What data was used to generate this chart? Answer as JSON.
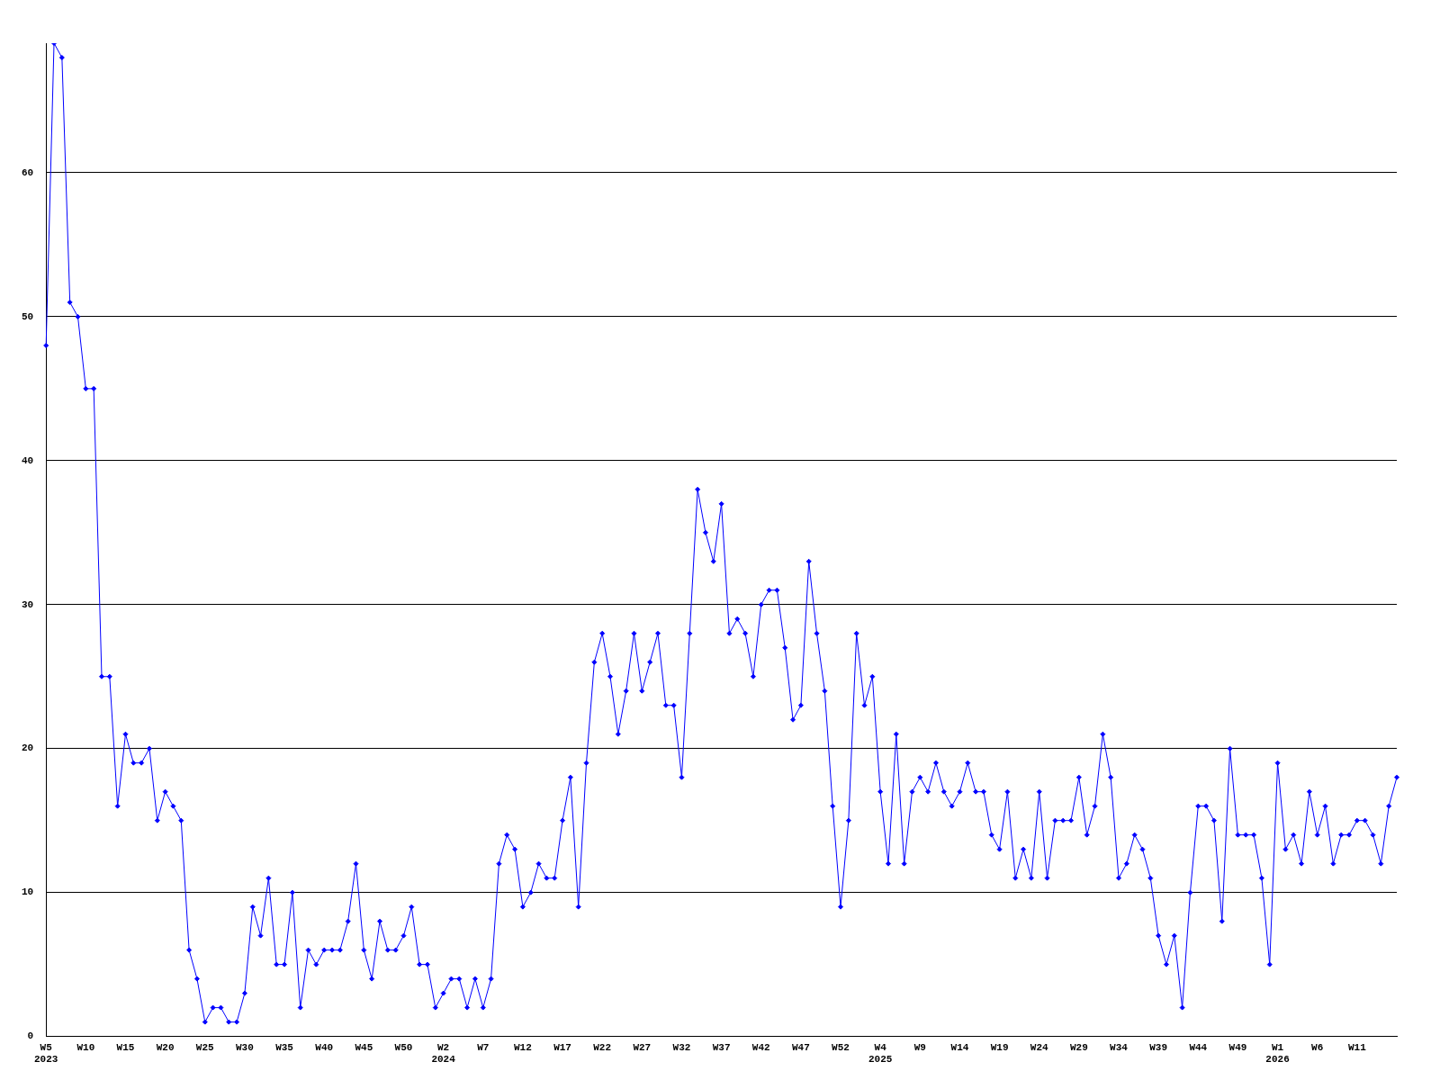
{
  "chart_data": {
    "type": "line",
    "categories": [
      "W5\n2023",
      null,
      null,
      null,
      null,
      "W10",
      null,
      null,
      null,
      null,
      "W15",
      null,
      null,
      null,
      null,
      "W20",
      null,
      null,
      null,
      null,
      "W25",
      null,
      null,
      null,
      null,
      "W30",
      null,
      null,
      null,
      null,
      "W35",
      null,
      null,
      null,
      null,
      "W40",
      null,
      null,
      null,
      null,
      "W45",
      null,
      null,
      null,
      null,
      "W50",
      null,
      null,
      null,
      null,
      "W2\n2024",
      null,
      null,
      null,
      null,
      "W7",
      null,
      null,
      null,
      null,
      "W12",
      null,
      null,
      null,
      null,
      "W17",
      null,
      null,
      null,
      null,
      "W22",
      null,
      null,
      null,
      null,
      "W27",
      null,
      null,
      null,
      null,
      "W32",
      null,
      null,
      null,
      null,
      "W37",
      null,
      null,
      null,
      null,
      "W42",
      null,
      null,
      null,
      null,
      "W47",
      null,
      null,
      null,
      null,
      "W52",
      null,
      null,
      null,
      null,
      "W4\n2025",
      null,
      null,
      null,
      null,
      "W9",
      null,
      null,
      null,
      null,
      "W14",
      null,
      null,
      null,
      null,
      "W19",
      null,
      null,
      null,
      null,
      "W24",
      null,
      null,
      null,
      null,
      "W29",
      null,
      null,
      null,
      null,
      "W34",
      null,
      null,
      null,
      null,
      "W39",
      null,
      null,
      null,
      null,
      "W44",
      null,
      null,
      null,
      null,
      "W49",
      null,
      null,
      null,
      null,
      "W1\n2026",
      null,
      null,
      null,
      null,
      "W6",
      null,
      null,
      null,
      null,
      "W11",
      null,
      null,
      null,
      null,
      null
    ],
    "series": [
      {
        "color": "#0000ff",
        "values": [
          48,
          69,
          68,
          51,
          50,
          45,
          45,
          25,
          25,
          16,
          21,
          19,
          19,
          20,
          15,
          17,
          16,
          15,
          6,
          4,
          1,
          2,
          2,
          1,
          1,
          3,
          9,
          7,
          11,
          5,
          5,
          10,
          2,
          6,
          5,
          6,
          6,
          6,
          8,
          12,
          6,
          4,
          8,
          6,
          6,
          7,
          9,
          5,
          5,
          2,
          3,
          4,
          4,
          2,
          4,
          2,
          4,
          12,
          14,
          13,
          9,
          10,
          12,
          11,
          11,
          15,
          18,
          9,
          19,
          26,
          28,
          25,
          21,
          24,
          28,
          24,
          26,
          28,
          23,
          23,
          18,
          28,
          38,
          35,
          33,
          37,
          28,
          29,
          28,
          25,
          30,
          31,
          31,
          27,
          22,
          23,
          33,
          28,
          24,
          16,
          9,
          15,
          28,
          23,
          25,
          17,
          12,
          21,
          12,
          17,
          18,
          17,
          19,
          17,
          16,
          17,
          19,
          17,
          17,
          14,
          13,
          17,
          11,
          13,
          11,
          17,
          11,
          15,
          15,
          15,
          18,
          14,
          16,
          21,
          18,
          11,
          12,
          14,
          13,
          11,
          7,
          5,
          7,
          2,
          10,
          16,
          16,
          15,
          8,
          20,
          14,
          14,
          14,
          11,
          5,
          19,
          13,
          14,
          12,
          17,
          14,
          16,
          12,
          14,
          14,
          15,
          15,
          14,
          12,
          16,
          18
        ]
      }
    ],
    "ylim": [
      0,
      69
    ],
    "yticks": [
      0,
      10,
      20,
      30,
      40,
      50,
      60
    ],
    "grid": "y",
    "legend": false,
    "marker": "diamond",
    "line_style": "solid"
  }
}
